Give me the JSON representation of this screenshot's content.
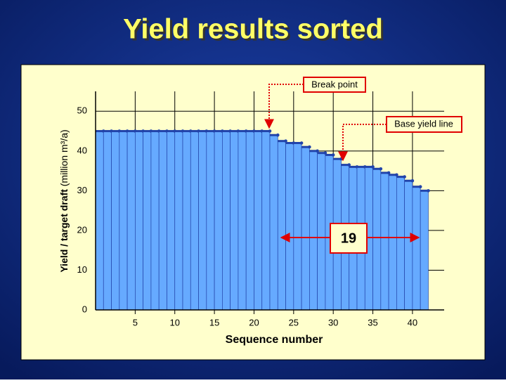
{
  "title": "Yield results sorted",
  "chart_data": {
    "type": "step-area",
    "xlabel": "Sequence number",
    "ylabel": "Yield / target draft",
    "ylabel_unit": "(million m³/a)",
    "x": [
      1,
      2,
      3,
      4,
      5,
      6,
      7,
      8,
      9,
      10,
      11,
      12,
      13,
      14,
      15,
      16,
      17,
      18,
      19,
      20,
      21,
      22,
      23,
      24,
      25,
      26,
      27,
      28,
      29,
      30,
      31,
      32,
      33,
      34,
      35,
      36,
      37,
      38,
      39,
      40,
      41,
      42
    ],
    "values": [
      45,
      45,
      45,
      45,
      45,
      45,
      45,
      45,
      45,
      45,
      45,
      45,
      45,
      45,
      45,
      45,
      45,
      45,
      45,
      45,
      45,
      45,
      44,
      42.5,
      42,
      42,
      41,
      40,
      39.5,
      39,
      38,
      36.5,
      36,
      36,
      36,
      35.5,
      34.5,
      34,
      33.5,
      32.5,
      31,
      30
    ],
    "color": "#66aaff",
    "edge_color": "#2244aa",
    "xlim": [
      0,
      44
    ],
    "ylim": [
      0,
      55
    ],
    "xticks": [
      5,
      10,
      15,
      20,
      25,
      30,
      35,
      40
    ],
    "yticks": [
      0,
      10,
      20,
      30,
      40,
      50
    ],
    "grid": true,
    "annotations": [
      {
        "text": "Break point"
      },
      {
        "text": "Base yield line"
      },
      {
        "text": "19"
      }
    ]
  }
}
